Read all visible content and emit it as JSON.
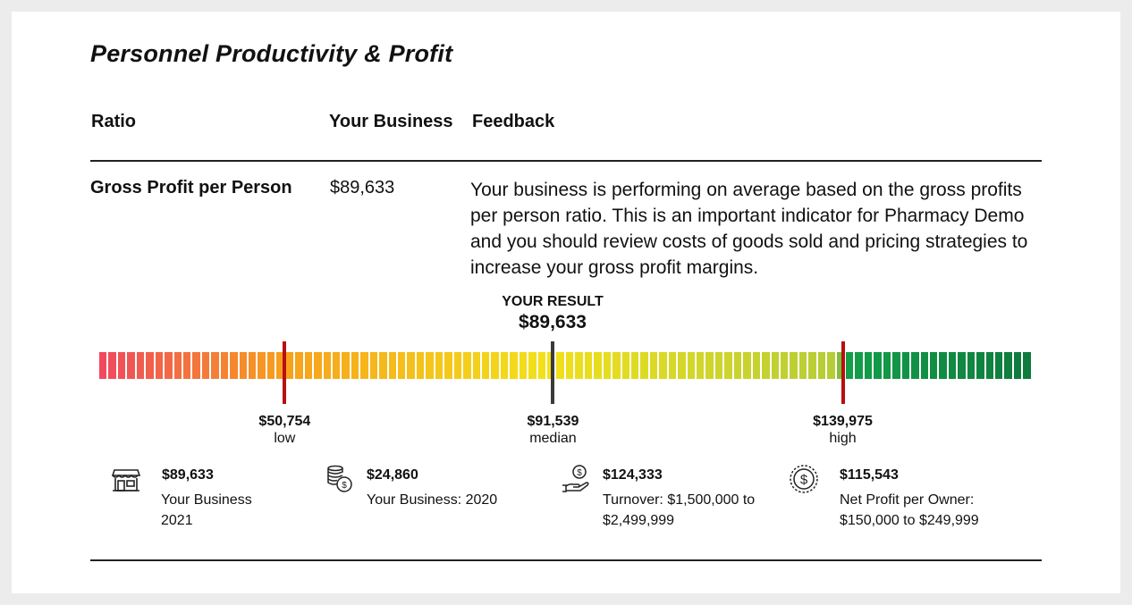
{
  "page": {
    "title": "Personnel Productivity & Profit"
  },
  "columns": {
    "ratio": "Ratio",
    "your_business": "Your Business",
    "feedback": "Feedback"
  },
  "row": {
    "ratio_name": "Gross Profit per Person",
    "value": "$89,633",
    "feedback": "Your business is performing on average based on the gross profits per person ratio. This is an important indicator for Pharmacy Demo and you should review costs of goods sold and pricing strategies to increase your gross profit margins."
  },
  "gauge": {
    "result_label": "YOUR RESULT",
    "result_value": "$89,633",
    "result_position": 0.487,
    "colors": {
      "red": "#ef4a5e",
      "orange": "#f7a21c",
      "yellow": "#f2e11a",
      "yellow_green": "#b4cc38",
      "green": "#13a04a",
      "dark_green": "#0e7a3d",
      "marker_red": "#b80f0f",
      "marker_result": "#3a3a3a"
    },
    "markers": [
      {
        "value": "$50,754",
        "label": "low",
        "position": 0.199
      },
      {
        "value": "$91,539",
        "label": "median",
        "position": 0.487
      },
      {
        "value": "$139,975",
        "label": "high",
        "position": 0.798
      }
    ]
  },
  "stats": [
    {
      "icon": "storefront-icon",
      "value": "$89,633",
      "caption": "Your Business 2021"
    },
    {
      "icon": "coins-icon",
      "value": "$24,860",
      "caption": "Your Business: 2020"
    },
    {
      "icon": "hand-coin-icon",
      "value": "$124,333",
      "caption": "Turnover: $1,500,000 to $2,499,999"
    },
    {
      "icon": "dollar-circle-icon",
      "value": "$115,543",
      "caption": "Net Profit per Owner: $150,000 to $249,999"
    }
  ]
}
